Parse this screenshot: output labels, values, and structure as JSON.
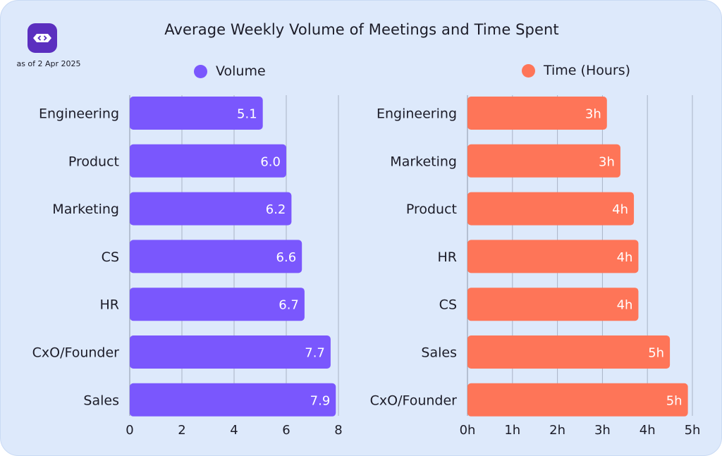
{
  "header": {
    "title": "Average Weekly Volume of Meetings and Time Spent",
    "as_of": "as of 2 Apr 2025",
    "logo_icon": "chat-bot-icon"
  },
  "colors": {
    "volume": "#7a57fd",
    "time": "#fe7558",
    "background": "#dde9fb",
    "grid": "#a9b3c6"
  },
  "chart_data": [
    {
      "type": "bar",
      "orientation": "horizontal",
      "legend": "Volume",
      "categories": [
        "Engineering",
        "Product",
        "Marketing",
        "CS",
        "HR",
        "CxO/Founder",
        "Sales"
      ],
      "values": [
        5.1,
        6.0,
        6.2,
        6.6,
        6.7,
        7.7,
        7.9
      ],
      "value_labels": [
        "5.1",
        "6.0",
        "6.2",
        "6.6",
        "6.7",
        "7.7",
        "7.9"
      ],
      "xlim": [
        0,
        8
      ],
      "xticks": [
        "0",
        "2",
        "4",
        "6",
        "8"
      ],
      "grid": true,
      "legend_position": "top"
    },
    {
      "type": "bar",
      "orientation": "horizontal",
      "legend": "Time (Hours)",
      "categories": [
        "Engineering",
        "Marketing",
        "Product",
        "HR",
        "CS",
        "Sales",
        "CxO/Founder"
      ],
      "values": [
        3.1,
        3.4,
        3.7,
        3.8,
        3.8,
        4.5,
        4.9
      ],
      "value_labels": [
        "3h",
        "3h",
        "4h",
        "4h",
        "4h",
        "5h",
        "5h"
      ],
      "xlim": [
        0,
        5
      ],
      "xticks": [
        "0h",
        "1h",
        "2h",
        "3h",
        "4h",
        "5h"
      ],
      "grid": true,
      "legend_position": "top"
    }
  ]
}
